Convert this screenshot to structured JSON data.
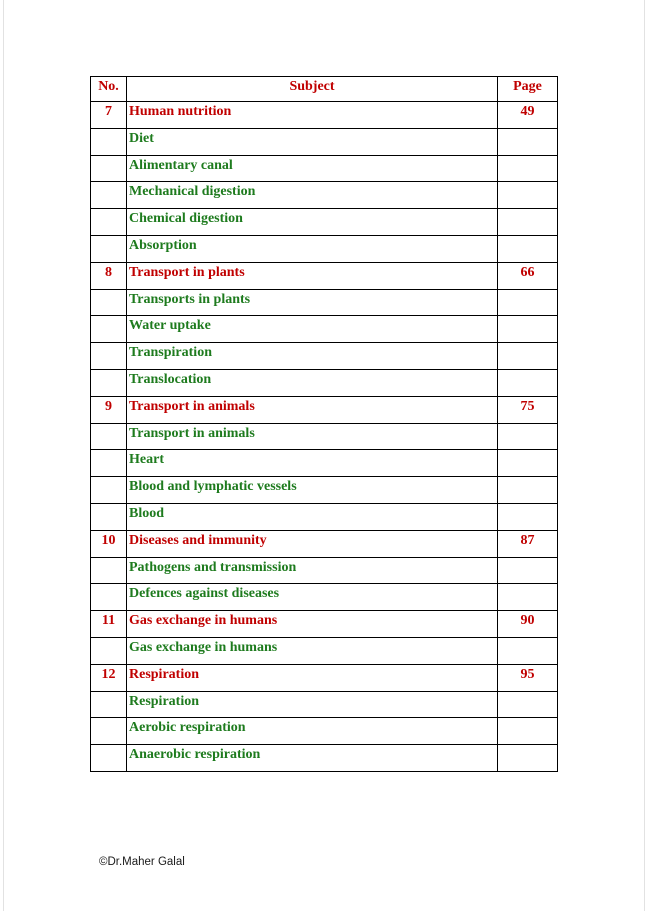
{
  "colors": {
    "chapter_red": "#C00000",
    "topic_green": "#1E7B1E",
    "table_border": "#000000",
    "footer_text": "#1A1A1A",
    "page_edge": "#E2E2E2",
    "page_bg": "#FFFFFF"
  },
  "footer": {
    "copyright": "©Dr.Maher Galal"
  },
  "table": {
    "headers": [
      "No.",
      "Subject",
      "Page"
    ],
    "rows": [
      {
        "no": "7",
        "subject": "Human nutrition",
        "page": "49",
        "type": "chapter"
      },
      {
        "no": "",
        "subject": "Diet",
        "page": "",
        "type": "topic"
      },
      {
        "no": "",
        "subject": "Alimentary canal",
        "page": "",
        "type": "topic"
      },
      {
        "no": "",
        "subject": "Mechanical digestion",
        "page": "",
        "type": "topic"
      },
      {
        "no": "",
        "subject": "Chemical digestion",
        "page": "",
        "type": "topic"
      },
      {
        "no": "",
        "subject": "Absorption",
        "page": "",
        "type": "topic"
      },
      {
        "no": "8",
        "subject": "Transport in plants",
        "page": "66",
        "type": "chapter"
      },
      {
        "no": "",
        "subject": "Transports in plants",
        "page": "",
        "type": "topic"
      },
      {
        "no": "",
        "subject": "Water uptake",
        "page": "",
        "type": "topic"
      },
      {
        "no": "",
        "subject": "Transpiration",
        "page": "",
        "type": "topic"
      },
      {
        "no": "",
        "subject": "Translocation",
        "page": "",
        "type": "topic"
      },
      {
        "no": "9",
        "subject": "Transport in animals",
        "page": "75",
        "type": "chapter"
      },
      {
        "no": "",
        "subject": "Transport in animals",
        "page": "",
        "type": "topic"
      },
      {
        "no": "",
        "subject": "Heart",
        "page": "",
        "type": "topic"
      },
      {
        "no": "",
        "subject": "Blood and lymphatic vessels",
        "page": "",
        "type": "topic"
      },
      {
        "no": "",
        "subject": "Blood",
        "page": "",
        "type": "topic"
      },
      {
        "no": "10",
        "subject": "Diseases and immunity",
        "page": "87",
        "type": "chapter"
      },
      {
        "no": "",
        "subject": "Pathogens and transmission",
        "page": "",
        "type": "topic"
      },
      {
        "no": "",
        "subject": "Defences against diseases",
        "page": "",
        "type": "topic"
      },
      {
        "no": "11",
        "subject": "Gas exchange in humans",
        "page": "90",
        "type": "chapter"
      },
      {
        "no": "",
        "subject": "Gas exchange in humans",
        "page": "",
        "type": "topic"
      },
      {
        "no": "12",
        "subject": "Respiration",
        "page": "95",
        "type": "chapter"
      },
      {
        "no": "",
        "subject": "Respiration",
        "page": "",
        "type": "topic"
      },
      {
        "no": "",
        "subject": "Aerobic respiration",
        "page": "",
        "type": "topic"
      },
      {
        "no": "",
        "subject": "Anaerobic respiration",
        "page": "",
        "type": "topic"
      }
    ]
  }
}
